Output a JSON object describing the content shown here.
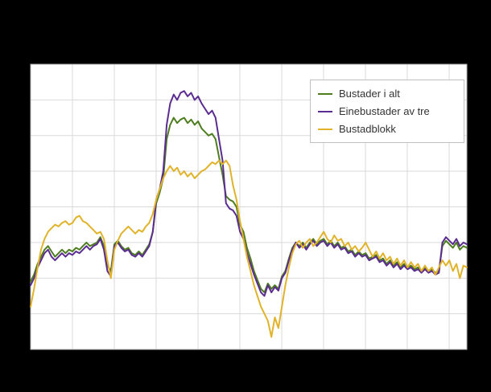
{
  "page": {
    "background_color": "#000000"
  },
  "chart_data": {
    "type": "line",
    "title": "",
    "xlabel": "",
    "ylabel": "",
    "ylim": [
      0,
      8
    ],
    "y_gridline_step": 1,
    "x_gridline_count": 11,
    "grid": true,
    "legend_position": "top-right-inside",
    "plot_background": "#ffffff",
    "gridline_color": "#d9d9d9",
    "border_color": "#b3b3b3",
    "series": [
      {
        "name": "Bustader i alt",
        "color": "#4e7d20",
        "values": [
          1.9,
          2.1,
          2.4,
          2.6,
          2.8,
          2.9,
          2.75,
          2.6,
          2.7,
          2.8,
          2.7,
          2.8,
          2.75,
          2.85,
          2.8,
          2.9,
          3.0,
          2.9,
          2.95,
          3.0,
          3.15,
          2.9,
          2.35,
          2.2,
          2.95,
          3.05,
          2.9,
          2.8,
          2.85,
          2.7,
          2.65,
          2.75,
          2.65,
          2.8,
          2.95,
          3.3,
          4.1,
          4.4,
          4.8,
          5.9,
          6.3,
          6.5,
          6.35,
          6.45,
          6.5,
          6.35,
          6.45,
          6.3,
          6.4,
          6.2,
          6.1,
          6.0,
          6.05,
          5.9,
          5.4,
          4.9,
          4.3,
          4.2,
          4.15,
          4.0,
          3.5,
          3.3,
          2.85,
          2.55,
          2.2,
          1.95,
          1.7,
          1.6,
          1.85,
          1.7,
          1.8,
          1.7,
          2.05,
          2.2,
          2.55,
          2.85,
          3.0,
          2.9,
          3.0,
          2.85,
          3.0,
          3.1,
          2.95,
          3.05,
          3.1,
          2.95,
          3.05,
          2.9,
          3.0,
          2.85,
          2.9,
          2.75,
          2.8,
          2.65,
          2.75,
          2.65,
          2.7,
          2.55,
          2.6,
          2.65,
          2.5,
          2.55,
          2.4,
          2.5,
          2.35,
          2.45,
          2.3,
          2.4,
          2.3,
          2.35,
          2.25,
          2.3,
          2.2,
          2.3,
          2.2,
          2.25,
          2.15,
          2.2,
          2.9,
          3.05,
          2.95,
          2.85,
          3.0,
          2.8,
          2.9,
          2.85
        ]
      },
      {
        "name": "Einebustader av tre",
        "color": "#5c2d91",
        "values": [
          1.8,
          2.0,
          2.3,
          2.5,
          2.7,
          2.8,
          2.6,
          2.5,
          2.6,
          2.7,
          2.6,
          2.7,
          2.65,
          2.75,
          2.7,
          2.8,
          2.9,
          2.8,
          2.9,
          2.95,
          3.1,
          2.8,
          2.2,
          2.05,
          2.9,
          3.0,
          2.85,
          2.75,
          2.8,
          2.65,
          2.6,
          2.7,
          2.6,
          2.75,
          2.9,
          3.3,
          4.2,
          4.5,
          5.0,
          6.3,
          6.9,
          7.15,
          7.0,
          7.2,
          7.25,
          7.1,
          7.2,
          7.0,
          7.1,
          6.9,
          6.75,
          6.6,
          6.7,
          6.5,
          5.9,
          5.3,
          4.1,
          3.95,
          3.9,
          3.75,
          3.3,
          3.1,
          2.7,
          2.4,
          2.1,
          1.85,
          1.6,
          1.5,
          1.8,
          1.6,
          1.75,
          1.65,
          2.0,
          2.15,
          2.5,
          2.8,
          3.0,
          2.85,
          2.95,
          2.8,
          2.95,
          3.05,
          2.9,
          3.0,
          3.05,
          2.9,
          3.0,
          2.85,
          2.95,
          2.8,
          2.85,
          2.7,
          2.75,
          2.6,
          2.7,
          2.6,
          2.65,
          2.5,
          2.55,
          2.6,
          2.45,
          2.5,
          2.35,
          2.45,
          2.3,
          2.4,
          2.25,
          2.35,
          2.25,
          2.3,
          2.2,
          2.25,
          2.15,
          2.25,
          2.15,
          2.2,
          2.1,
          2.15,
          3.0,
          3.15,
          3.05,
          2.95,
          3.1,
          2.9,
          3.0,
          2.95
        ]
      },
      {
        "name": "Bustadblokk",
        "color": "#e0b32a",
        "values": [
          1.2,
          1.7,
          2.3,
          2.8,
          3.1,
          3.3,
          3.4,
          3.5,
          3.45,
          3.55,
          3.6,
          3.5,
          3.55,
          3.7,
          3.75,
          3.6,
          3.55,
          3.45,
          3.35,
          3.25,
          3.3,
          3.1,
          2.5,
          2.0,
          2.8,
          3.05,
          3.25,
          3.35,
          3.45,
          3.35,
          3.25,
          3.35,
          3.3,
          3.45,
          3.55,
          3.8,
          4.2,
          4.5,
          4.8,
          5.0,
          5.15,
          5.0,
          5.1,
          4.9,
          5.0,
          4.85,
          4.95,
          4.8,
          4.9,
          5.0,
          5.05,
          5.15,
          5.25,
          5.2,
          5.3,
          5.2,
          5.3,
          5.15,
          4.6,
          4.2,
          3.6,
          3.1,
          2.6,
          2.2,
          1.8,
          1.5,
          1.2,
          1.0,
          0.8,
          0.35,
          0.9,
          0.6,
          1.2,
          1.8,
          2.3,
          2.7,
          2.95,
          3.05,
          2.85,
          3.0,
          3.1,
          2.9,
          3.0,
          3.15,
          3.3,
          3.1,
          3.0,
          3.2,
          3.05,
          3.1,
          2.9,
          3.0,
          2.8,
          2.9,
          2.75,
          2.85,
          3.0,
          2.8,
          2.6,
          2.75,
          2.55,
          2.7,
          2.5,
          2.6,
          2.4,
          2.55,
          2.35,
          2.5,
          2.3,
          2.45,
          2.3,
          2.4,
          2.2,
          2.35,
          2.2,
          2.3,
          2.1,
          2.3,
          2.5,
          2.35,
          2.5,
          2.2,
          2.4,
          2.0,
          2.35,
          2.3
        ]
      }
    ]
  }
}
